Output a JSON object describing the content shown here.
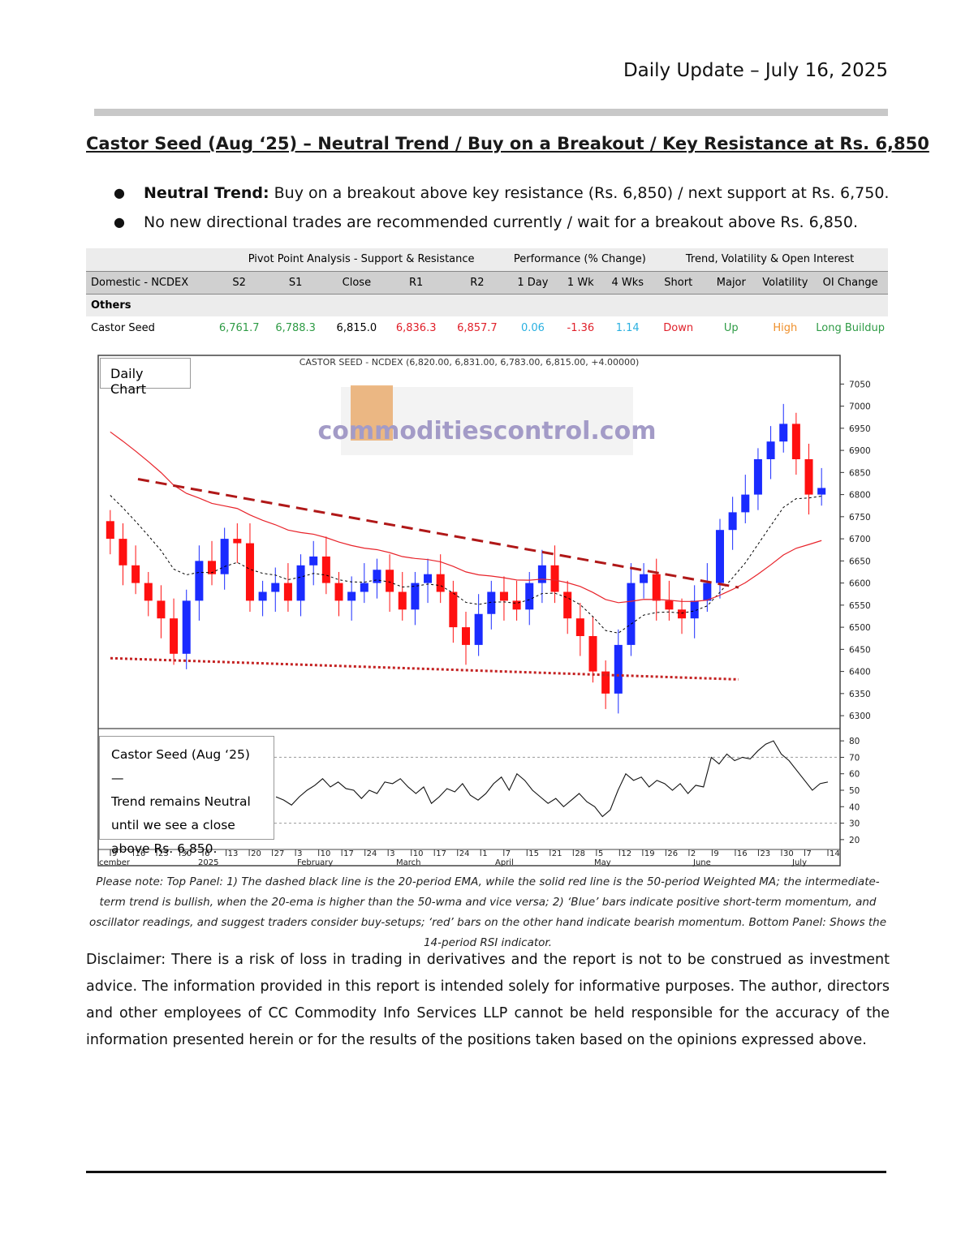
{
  "header": {
    "date": "Daily Update – July 16, 2025"
  },
  "title": "Castor Seed (Aug    ‘25) – Neutral Trend / Buy on a Breakout / Key Resistance at Rs. 6,850",
  "bullets": [
    {
      "bold": "Neutral Trend:",
      "text": " Buy on a breakout above key resistance (Rs. 6,850) / next support at Rs. 6,750."
    },
    {
      "bold": "",
      "text": "No new directional trades are recommended currently / wait for a breakout above Rs. 6,850."
    }
  ],
  "table": {
    "groups": {
      "pivot": "Pivot Point Analysis - Support & Resistance",
      "performance": "Performance (% Change)",
      "trend": "Trend, Volatility & Open Interest"
    },
    "columns": [
      "Domestic - NCDEX",
      "S2",
      "S1",
      "Close",
      "R1",
      "R2",
      "1 Day",
      "1 Wk",
      "4 Wks",
      "Short",
      "Major",
      "Volatility",
      "OI Change"
    ],
    "section": "Others",
    "row": {
      "name": "Castor Seed",
      "s2": "6,761.7",
      "s1": "6,788.3",
      "close": "6,815.0",
      "r1": "6,836.3",
      "r2": "6,857.7",
      "d1": "0.06",
      "w1": "-1.36",
      "w4": "1.14",
      "short": "Down",
      "major": "Up",
      "volatility": "High",
      "oi": "Long Buildup"
    }
  },
  "chart": {
    "label": "Daily Chart",
    "header": "CASTOR SEED - NCDEX (6,820.00, 6,831.00, 6,783.00, 6,815.00, +4.00000)",
    "watermark": "commoditiescontrol.com",
    "rsi_note": [
      "Castor Seed (Aug    ‘25)—",
      "Trend remains Neutral",
      "until we see a close",
      "above Rs. 6,850."
    ],
    "colors": {
      "up": "#1a2bff",
      "down": "#ff1010",
      "ema": "#000000",
      "wma": "#e8232a",
      "resistance": "#b01818",
      "support": "#c42222"
    }
  },
  "chart_data": [
    {
      "type": "candlestick",
      "title": "CASTOR SEED - NCDEX (6,820.00, 6,831.00, 6,783.00, 6,815.00, +4.00000)",
      "ylim": [
        6280,
        7080
      ],
      "y_ticks": [
        6300,
        6350,
        6400,
        6450,
        6500,
        6550,
        6600,
        6650,
        6700,
        6750,
        6800,
        6850,
        6900,
        6950,
        7000,
        7050
      ],
      "x_ticks": [
        "9",
        "16",
        "23",
        "30",
        "6",
        "13",
        "20",
        "27",
        "3",
        "10",
        "17",
        "24",
        "3",
        "10",
        "17",
        "24",
        "1",
        "7",
        "15",
        "21",
        "28",
        "5",
        "12",
        "19",
        "26",
        "2",
        "9",
        "16",
        "23",
        "30",
        "7",
        "14"
      ],
      "x_months": [
        "cember",
        "2025",
        "February",
        "March",
        "April",
        "May",
        "June",
        "July"
      ],
      "close_approx": [
        6700,
        6640,
        6600,
        6560,
        6520,
        6440,
        6560,
        6650,
        6620,
        6700,
        6690,
        6560,
        6580,
        6600,
        6560,
        6640,
        6660,
        6600,
        6560,
        6580,
        6600,
        6630,
        6580,
        6540,
        6600,
        6620,
        6580,
        6500,
        6460,
        6530,
        6580,
        6560,
        6540,
        6600,
        6640,
        6580,
        6520,
        6480,
        6400,
        6350,
        6460,
        6600,
        6620,
        6560,
        6540,
        6520,
        6560,
        6600,
        6720,
        6760,
        6800,
        6880,
        6920,
        6960,
        6880,
        6800,
        6815
      ],
      "resistance_trendline": {
        "from": 6835,
        "to": 6590
      },
      "support_trendline": {
        "from": 6430,
        "to": 6382
      }
    },
    {
      "type": "line",
      "title": "",
      "ylim": [
        15,
        85
      ],
      "y_ticks": [
        20,
        30,
        40,
        50,
        60,
        70,
        80
      ],
      "reference_lines": [
        30,
        70
      ],
      "values": [
        46,
        44,
        41,
        46,
        50,
        53,
        57,
        52,
        55,
        51,
        50,
        45,
        50,
        48,
        55,
        54,
        57,
        52,
        48,
        52,
        42,
        46,
        51,
        49,
        54,
        47,
        44,
        48,
        54,
        58,
        50,
        60,
        56,
        50,
        46,
        42,
        45,
        40,
        44,
        48,
        43,
        40,
        34,
        38,
        50,
        60,
        56,
        58,
        52,
        56,
        54,
        50,
        54,
        48,
        53,
        52,
        70,
        66,
        72,
        68,
        70,
        69,
        74,
        78,
        80,
        72,
        68,
        62,
        56,
        50,
        54,
        55
      ]
    }
  ],
  "note": "Please note: Top Panel: 1) The dashed black line is the 20-period EMA, while the solid red line is the 50-period Weighted MA; the intermediate-term trend is bullish, when the 20-ema is higher than the 50-wma and vice versa; 2)   ‘Blue’   bars indicate positive short-term momentum, and oscillator readings, and suggest traders consider buy-setups;   ‘red’   bars on the other hand indicate bearish momentum. Bottom Panel: Shows the 14-period RSI indicator.",
  "disclaimer": "Disclaimer: There is a risk of loss in trading in derivatives and the report is not to be construed as investment advice. The information provided in this report is intended solely for informative purposes. The author, directors and other employees of CC Commodity Info Services LLP cannot be held responsible for the accuracy of the information presented herein or for the results of the positions taken based on the opinions expressed above."
}
